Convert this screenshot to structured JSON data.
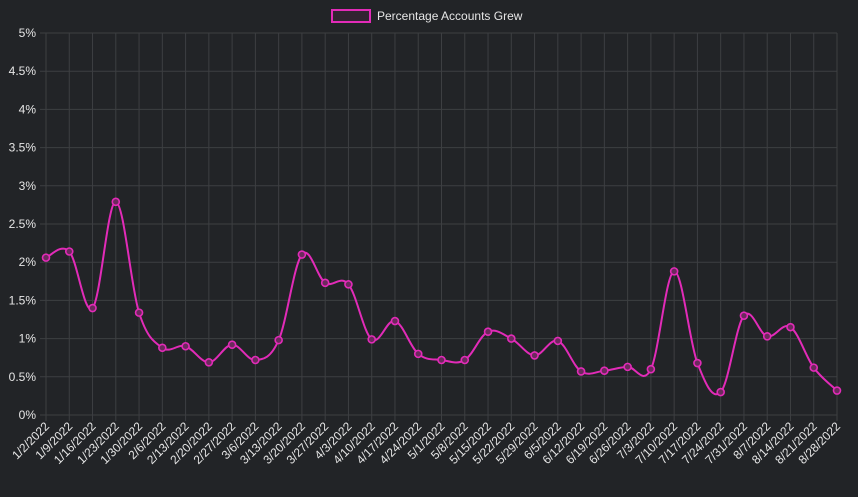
{
  "chart_data": {
    "type": "line",
    "title": "",
    "xlabel": "",
    "ylabel": "",
    "legend_position": "top-center",
    "grid": true,
    "ylim": [
      0,
      5
    ],
    "y_ticks": [
      "0%",
      "0.5%",
      "1%",
      "1.5%",
      "2%",
      "2.5%",
      "3%",
      "3.5%",
      "4%",
      "4.5%",
      "5%"
    ],
    "categories": [
      "1/2/2022",
      "1/9/2022",
      "1/16/2022",
      "1/23/2022",
      "1/30/2022",
      "2/6/2022",
      "2/13/2022",
      "2/20/2022",
      "2/27/2022",
      "3/6/2022",
      "3/13/2022",
      "3/20/2022",
      "3/27/2022",
      "4/3/2022",
      "4/10/2022",
      "4/17/2022",
      "4/24/2022",
      "5/1/2022",
      "5/8/2022",
      "5/15/2022",
      "5/22/2022",
      "5/29/2022",
      "6/5/2022",
      "6/12/2022",
      "6/19/2022",
      "6/26/2022",
      "7/3/2022",
      "7/10/2022",
      "7/17/2022",
      "7/24/2022",
      "7/31/2022",
      "8/7/2022",
      "8/14/2022",
      "8/21/2022",
      "8/28/2022"
    ],
    "series": [
      {
        "name": "Percentage Accounts Grew",
        "color": "#e22bb8",
        "values": [
          2.06,
          2.14,
          1.4,
          2.79,
          1.34,
          0.88,
          0.9,
          0.69,
          0.92,
          0.72,
          0.98,
          2.1,
          1.73,
          1.71,
          0.99,
          1.23,
          0.8,
          0.72,
          0.72,
          1.09,
          1.0,
          0.78,
          0.97,
          0.57,
          0.58,
          0.63,
          0.6,
          1.88,
          0.68,
          0.3,
          1.3,
          1.03,
          1.15,
          0.62,
          0.32
        ]
      }
    ]
  },
  "style": {
    "background": "#222427",
    "grid_color": "#3d3f42",
    "text_color": "#e6e6e6"
  }
}
